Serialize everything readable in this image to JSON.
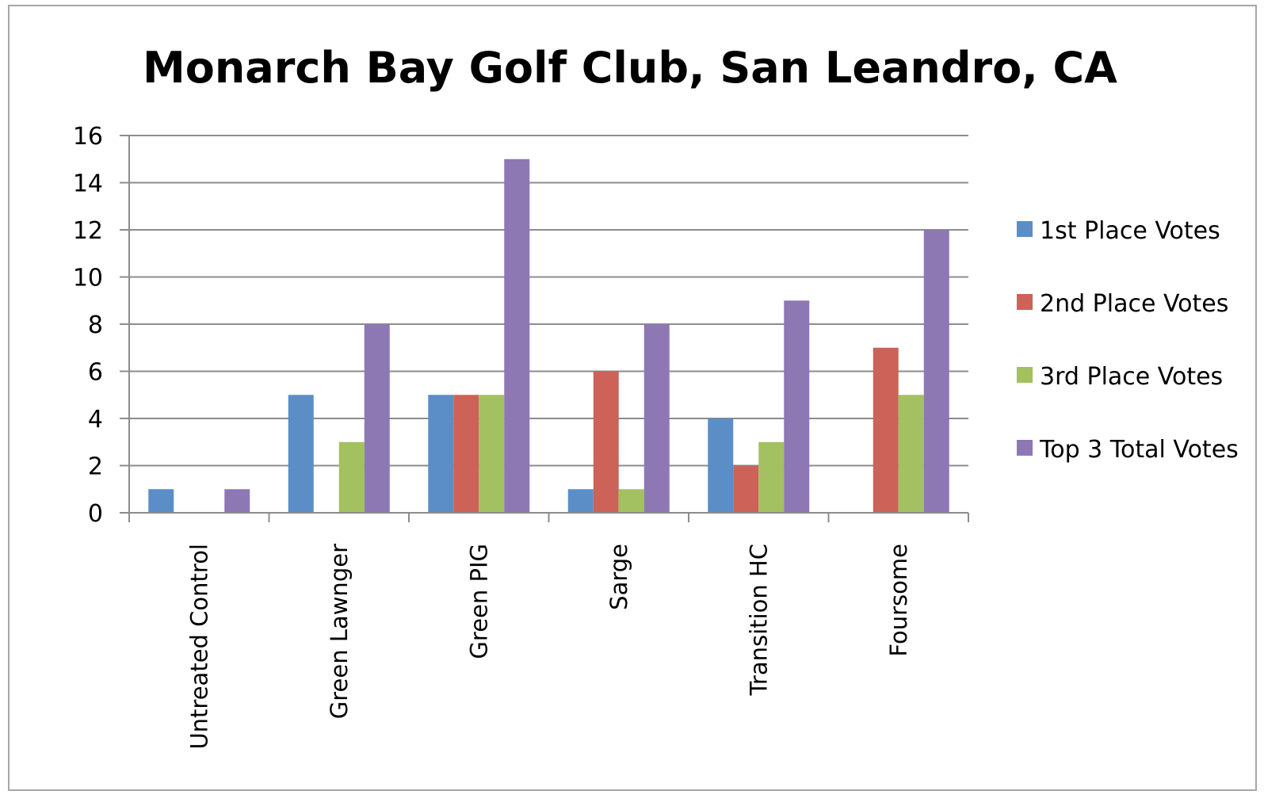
{
  "chart_data": {
    "type": "bar",
    "title": "Monarch Bay Golf Club, San Leandro, CA",
    "xlabel": "",
    "ylabel": "",
    "ylim": [
      0,
      16
    ],
    "yticks": [
      0,
      2,
      4,
      6,
      8,
      10,
      12,
      14,
      16
    ],
    "grid": true,
    "legend_position": "right",
    "categories": [
      "Untreated Control",
      "Green Lawnger",
      "Green PIG",
      "Sarge",
      "Transition HC",
      "Foursome"
    ],
    "series": [
      {
        "name": "1st Place Votes",
        "color": "#5b8ec7",
        "values": [
          1,
          5,
          5,
          1,
          4,
          0
        ]
      },
      {
        "name": "2nd Place Votes",
        "color": "#cc6258",
        "values": [
          0,
          0,
          5,
          6,
          2,
          7
        ]
      },
      {
        "name": "3rd Place Votes",
        "color": "#a3c160",
        "values": [
          0,
          3,
          5,
          1,
          3,
          5
        ]
      },
      {
        "name": "Top 3 Total Votes",
        "color": "#8d78b4",
        "values": [
          1,
          8,
          15,
          8,
          9,
          12
        ]
      }
    ]
  }
}
